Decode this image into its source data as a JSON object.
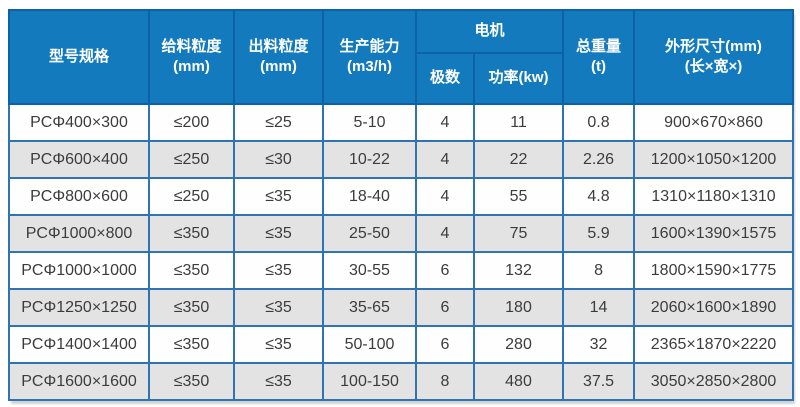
{
  "table": {
    "header": {
      "model": "型号规格",
      "feed_line1": "给料粒度",
      "feed_line2": "(mm)",
      "discharge_line1": "出料粒度",
      "discharge_line2": "(mm)",
      "capacity_line1": "生产能力",
      "capacity_line2": "(m3/h)",
      "motor_group": "电机",
      "poles": "极数",
      "power": "功率(kw)",
      "weight_line1": "总重量",
      "weight_line2": "(t)",
      "dimensions_line1": "外形尺寸(mm)",
      "dimensions_line2": "(长×宽×)"
    },
    "rows": [
      [
        "PCΦ400×300",
        "≤200",
        "≤25",
        "5-10",
        "4",
        "11",
        "0.8",
        "900×670×860"
      ],
      [
        "PCΦ600×400",
        "≤250",
        "≤30",
        "10-22",
        "4",
        "22",
        "2.26",
        "1200×1050×1200"
      ],
      [
        "PCΦ800×600",
        "≤250",
        "≤35",
        "18-40",
        "4",
        "55",
        "4.8",
        "1310×1180×1310"
      ],
      [
        "PCΦ1000×800",
        "≤350",
        "≤35",
        "25-50",
        "4",
        "75",
        "5.9",
        "1600×1390×1575"
      ],
      [
        "PCΦ1000×1000",
        "≤350",
        "≤35",
        "30-55",
        "6",
        "132",
        "8",
        "1800×1590×1775"
      ],
      [
        "PCΦ1250×1250",
        "≤350",
        "≤35",
        "35-65",
        "6",
        "180",
        "14",
        "2060×1600×1890"
      ],
      [
        "PCΦ1400×1400",
        "≤350",
        "≤35",
        "50-100",
        "6",
        "280",
        "32",
        "2365×1870×2220"
      ],
      [
        "PCΦ1600×1600",
        "≤350",
        "≤35",
        "100-150",
        "8",
        "480",
        "37.5",
        "3050×2850×2800"
      ]
    ],
    "colors": {
      "header_background": "#137abd",
      "header_text": "#ffffff",
      "header_border": "#0d61a6",
      "grid_border": "#2f74b0",
      "row_alt_background": "#e3e3e3",
      "row_background": "#fefefe",
      "cell_text": "#3c3c3c"
    }
  }
}
